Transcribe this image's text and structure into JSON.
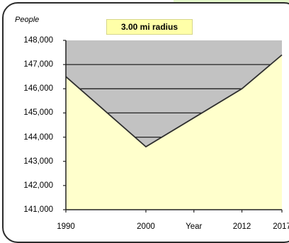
{
  "chart_data": {
    "type": "area",
    "title": "3.00 mi radius",
    "ylabel": "People",
    "xlabel": "Year",
    "ylim": [
      141000,
      148000
    ],
    "xlim": [
      1990,
      2017
    ],
    "grid": "horizontal lines inside shaded region",
    "y_ticks": [
      "148,000",
      "147,000",
      "146,000",
      "145,000",
      "144,000",
      "143,000",
      "142,000",
      "141,000"
    ],
    "y_tick_values": [
      148000,
      147000,
      146000,
      145000,
      144000,
      143000,
      142000,
      141000
    ],
    "x_ticks": [
      "1990",
      "2000",
      "Year",
      "2012",
      "2017"
    ],
    "x_tick_values": [
      1990,
      2000,
      2006,
      2012,
      2017
    ],
    "series": [
      {
        "x": [
          1990,
          2000,
          2012,
          2017
        ],
        "values": [
          146500,
          143600,
          146000,
          147400
        ]
      }
    ],
    "colors": {
      "area_fill": "#ffffcc",
      "upper_fill": "#c2c2c2",
      "line": "#2e2e2e",
      "title_bg": "#ffffa8"
    }
  }
}
